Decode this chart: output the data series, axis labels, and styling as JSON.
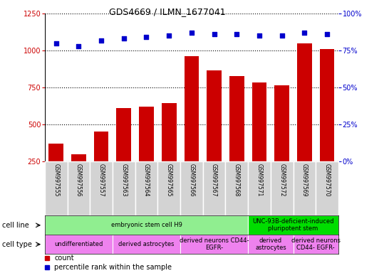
{
  "title": "GDS4669 / ILMN_1677041",
  "samples": [
    "GSM997555",
    "GSM997556",
    "GSM997557",
    "GSM997563",
    "GSM997564",
    "GSM997565",
    "GSM997566",
    "GSM997567",
    "GSM997568",
    "GSM997571",
    "GSM997572",
    "GSM997569",
    "GSM997570"
  ],
  "counts": [
    370,
    295,
    450,
    610,
    620,
    645,
    960,
    865,
    825,
    785,
    765,
    1050,
    1010
  ],
  "percentile_raw": [
    80,
    78,
    82,
    83,
    84,
    85,
    87,
    86,
    86,
    85,
    85,
    87,
    86
  ],
  "bar_color": "#cc0000",
  "dot_color": "#0000cc",
  "ylim_left": [
    250,
    1250
  ],
  "ylim_right": [
    0,
    100
  ],
  "yticks_left": [
    250,
    500,
    750,
    1000,
    1250
  ],
  "yticks_right": [
    0,
    25,
    50,
    75,
    100
  ],
  "cell_line_groups": [
    {
      "label": "embryonic stem cell H9",
      "start": 0,
      "end": 8,
      "color": "#90ee90"
    },
    {
      "label": "UNC-93B-deficient-induced\npluripotent stem",
      "start": 9,
      "end": 12,
      "color": "#00dd00"
    }
  ],
  "cell_type_groups": [
    {
      "label": "undifferentiated",
      "start": 0,
      "end": 2,
      "color": "#ee82ee"
    },
    {
      "label": "derived astrocytes",
      "start": 3,
      "end": 5,
      "color": "#ee82ee"
    },
    {
      "label": "derived neurons CD44-\nEGFR-",
      "start": 6,
      "end": 8,
      "color": "#ee82ee"
    },
    {
      "label": "derived\nastrocytes",
      "start": 9,
      "end": 10,
      "color": "#ee82ee"
    },
    {
      "label": "derived neurons\nCD44- EGFR-",
      "start": 11,
      "end": 12,
      "color": "#ee82ee"
    }
  ],
  "bg_color": "#d3d3d3",
  "left_axis_color": "#cc0000",
  "right_axis_color": "#0000cc",
  "title_fontsize": 9,
  "tick_fontsize": 7,
  "sample_fontsize": 5.5,
  "annotation_fontsize": 6,
  "legend_fontsize": 7
}
